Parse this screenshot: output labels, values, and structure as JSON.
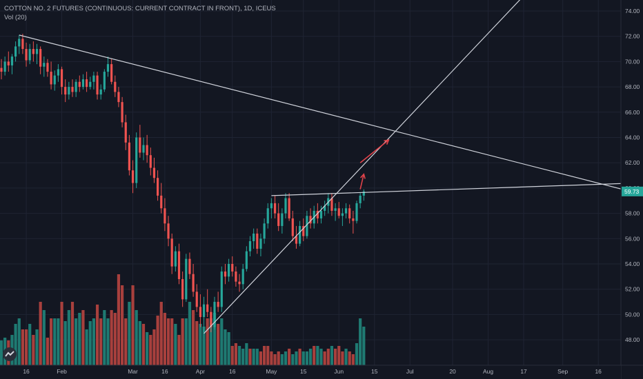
{
  "header": {
    "title": "COTTON NO. 2 FUTURES (CONTINUOUS: CURRENT CONTRACT IN FRONT), 1D, ICEUS",
    "volume_label": "Vol (20)"
  },
  "colors": {
    "background": "#131722",
    "grid": "#1f2433",
    "up": "#26a69a",
    "down": "#ef5350",
    "vol_up": "#1f7a72",
    "vol_down": "#a8403d",
    "trendline": "#d1d4dc",
    "arrow": "#e0434a",
    "axis_text": "#b2b5be",
    "price_badge": "#26a69a"
  },
  "chart_data": {
    "type": "candlestick",
    "price_axis": {
      "ylim": [
        47,
        75
      ],
      "tick_labels": [
        "74.00",
        "72.00",
        "70.00",
        "68.00",
        "66.00",
        "64.00",
        "62.00",
        "60.00",
        "58.00",
        "56.00",
        "54.00",
        "52.00",
        "50.00",
        "48.00"
      ],
      "tick_values": [
        74,
        72,
        70,
        68,
        66,
        64,
        62,
        60,
        58,
        56,
        54,
        52,
        50,
        48
      ],
      "last_price": "59.73",
      "last_price_value": 59.73
    },
    "time_axis": {
      "tick_labels": [
        "16",
        "Feb",
        "Mar",
        "16",
        "Apr",
        "16",
        "May",
        "15",
        "Jun",
        "15",
        "Jul",
        "20",
        "Aug",
        "17",
        "Sep",
        "16"
      ],
      "tick_bar_index": [
        7,
        17,
        37,
        46,
        56,
        65,
        76,
        85,
        95,
        105,
        115,
        127,
        137,
        147,
        158,
        168
      ]
    },
    "candles": [
      [
        69.5,
        70.2,
        68.6,
        69.2
      ],
      [
        69.2,
        70.4,
        68.9,
        70.0
      ],
      [
        70.0,
        70.8,
        69.2,
        69.7
      ],
      [
        69.7,
        70.6,
        69.0,
        70.4
      ],
      [
        70.4,
        71.6,
        70.0,
        71.2
      ],
      [
        71.2,
        72.1,
        70.6,
        71.8
      ],
      [
        71.8,
        72.2,
        70.6,
        71.0
      ],
      [
        71.0,
        71.5,
        69.6,
        70.1
      ],
      [
        70.1,
        71.4,
        69.8,
        71.0
      ],
      [
        71.0,
        71.6,
        70.0,
        70.6
      ],
      [
        70.6,
        71.4,
        69.8,
        71.0
      ],
      [
        71.0,
        71.2,
        69.0,
        69.6
      ],
      [
        69.6,
        70.4,
        68.8,
        69.9
      ],
      [
        69.9,
        70.2,
        68.8,
        69.2
      ],
      [
        69.2,
        70.0,
        67.8,
        68.2
      ],
      [
        68.2,
        69.3,
        67.7,
        68.9
      ],
      [
        68.9,
        69.8,
        68.4,
        69.4
      ],
      [
        69.4,
        69.6,
        67.4,
        68.0
      ],
      [
        68.0,
        68.6,
        66.8,
        67.4
      ],
      [
        67.4,
        68.4,
        67.0,
        68.0
      ],
      [
        68.0,
        68.6,
        67.2,
        67.6
      ],
      [
        67.6,
        68.6,
        67.2,
        68.4
      ],
      [
        68.4,
        68.9,
        67.6,
        68.0
      ],
      [
        68.0,
        69.0,
        67.8,
        68.6
      ],
      [
        68.6,
        69.2,
        67.6,
        68.0
      ],
      [
        68.0,
        68.8,
        67.8,
        68.4
      ],
      [
        68.4,
        69.2,
        67.8,
        68.9
      ],
      [
        68.9,
        69.2,
        67.0,
        67.4
      ],
      [
        67.4,
        68.2,
        67.0,
        67.8
      ],
      [
        67.8,
        69.4,
        67.6,
        69.2
      ],
      [
        69.2,
        70.4,
        68.8,
        69.8
      ],
      [
        69.8,
        70.2,
        68.2,
        68.4
      ],
      [
        68.4,
        68.9,
        67.2,
        67.6
      ],
      [
        67.6,
        68.0,
        66.4,
        66.8
      ],
      [
        66.8,
        67.2,
        64.8,
        65.2
      ],
      [
        65.2,
        65.8,
        63.0,
        63.6
      ],
      [
        63.6,
        64.2,
        61.0,
        61.4
      ],
      [
        61.4,
        62.2,
        59.6,
        60.4
      ],
      [
        60.4,
        64.4,
        60.0,
        64.0
      ],
      [
        64.0,
        65.0,
        62.4,
        62.8
      ],
      [
        62.8,
        64.0,
        62.2,
        63.4
      ],
      [
        63.4,
        64.2,
        62.0,
        62.6
      ],
      [
        62.6,
        63.2,
        61.0,
        61.6
      ],
      [
        61.6,
        62.4,
        60.4,
        60.8
      ],
      [
        60.8,
        61.4,
        59.0,
        59.4
      ],
      [
        59.4,
        60.4,
        58.0,
        58.4
      ],
      [
        58.4,
        59.2,
        56.6,
        57.2
      ],
      [
        57.2,
        57.8,
        55.4,
        56.0
      ],
      [
        56.0,
        56.4,
        53.2,
        53.8
      ],
      [
        53.8,
        55.4,
        53.4,
        55.0
      ],
      [
        55.0,
        55.6,
        52.4,
        52.8
      ],
      [
        52.8,
        53.4,
        50.6,
        51.2
      ],
      [
        51.2,
        54.8,
        51.0,
        54.4
      ],
      [
        54.4,
        54.9,
        52.8,
        53.2
      ],
      [
        53.2,
        54.0,
        51.4,
        51.8
      ],
      [
        51.8,
        52.4,
        50.2,
        50.6
      ],
      [
        50.6,
        51.6,
        49.0,
        49.8
      ],
      [
        49.8,
        51.4,
        48.6,
        50.8
      ],
      [
        50.8,
        52.0,
        49.8,
        50.2
      ],
      [
        50.2,
        50.6,
        48.6,
        49.0
      ],
      [
        49.0,
        51.4,
        48.8,
        51.0
      ],
      [
        51.0,
        51.8,
        50.2,
        50.6
      ],
      [
        50.6,
        53.8,
        50.2,
        53.4
      ],
      [
        53.4,
        54.0,
        52.4,
        53.0
      ],
      [
        53.0,
        54.4,
        52.6,
        54.0
      ],
      [
        54.0,
        54.6,
        53.0,
        53.4
      ],
      [
        53.4,
        53.8,
        52.2,
        52.6
      ],
      [
        52.6,
        53.2,
        51.8,
        52.4
      ],
      [
        52.4,
        54.0,
        52.0,
        53.6
      ],
      [
        53.6,
        55.4,
        53.4,
        55.0
      ],
      [
        55.0,
        56.2,
        54.6,
        55.8
      ],
      [
        55.8,
        56.8,
        55.2,
        56.4
      ],
      [
        56.4,
        56.8,
        54.8,
        55.2
      ],
      [
        55.2,
        56.4,
        54.6,
        56.0
      ],
      [
        56.0,
        57.6,
        55.6,
        57.2
      ],
      [
        57.2,
        58.8,
        56.8,
        58.4
      ],
      [
        58.4,
        59.2,
        57.6,
        58.8
      ],
      [
        58.8,
        59.4,
        57.6,
        58.0
      ],
      [
        58.0,
        58.8,
        56.6,
        57.0
      ],
      [
        57.0,
        58.4,
        56.4,
        58.0
      ],
      [
        58.0,
        59.6,
        57.6,
        59.2
      ],
      [
        59.2,
        59.6,
        57.4,
        57.6
      ],
      [
        57.6,
        58.2,
        55.8,
        56.2
      ],
      [
        56.2,
        57.0,
        55.2,
        55.6
      ],
      [
        55.6,
        57.4,
        55.4,
        57.0
      ],
      [
        57.0,
        57.6,
        55.8,
        56.2
      ],
      [
        56.2,
        58.2,
        56.0,
        57.8
      ],
      [
        57.8,
        58.4,
        56.8,
        57.2
      ],
      [
        57.2,
        58.6,
        56.8,
        58.2
      ],
      [
        58.2,
        58.8,
        57.2,
        57.6
      ],
      [
        57.6,
        58.6,
        57.2,
        58.2
      ],
      [
        58.2,
        59.0,
        57.8,
        58.6
      ],
      [
        58.6,
        59.6,
        58.0,
        59.2
      ],
      [
        59.2,
        59.6,
        57.8,
        58.2
      ],
      [
        58.2,
        58.8,
        57.4,
        58.4
      ],
      [
        58.4,
        58.9,
        57.6,
        57.8
      ],
      [
        57.8,
        58.4,
        57.0,
        58.0
      ],
      [
        58.0,
        58.8,
        57.6,
        58.4
      ],
      [
        58.4,
        58.7,
        57.2,
        57.6
      ],
      [
        57.6,
        58.2,
        56.4,
        57.4
      ],
      [
        57.4,
        59.0,
        57.2,
        58.8
      ],
      [
        58.8,
        59.6,
        58.4,
        59.4
      ],
      [
        59.4,
        59.9,
        59.0,
        59.73
      ]
    ],
    "volume": [
      [
        9,
        1
      ],
      [
        10,
        1
      ],
      [
        9,
        0
      ],
      [
        11,
        1
      ],
      [
        15,
        1
      ],
      [
        17,
        1
      ],
      [
        13,
        0
      ],
      [
        13,
        0
      ],
      [
        15,
        1
      ],
      [
        11,
        0
      ],
      [
        13,
        1
      ],
      [
        23,
        0
      ],
      [
        20,
        1
      ],
      [
        10,
        0
      ],
      [
        17,
        0
      ],
      [
        17,
        1
      ],
      [
        17,
        1
      ],
      [
        23,
        0
      ],
      [
        16,
        1
      ],
      [
        20,
        1
      ],
      [
        23,
        0
      ],
      [
        17,
        1
      ],
      [
        19,
        1
      ],
      [
        20,
        0
      ],
      [
        13,
        1
      ],
      [
        16,
        1
      ],
      [
        17,
        1
      ],
      [
        22,
        0
      ],
      [
        17,
        0
      ],
      [
        20,
        1
      ],
      [
        17,
        1
      ],
      [
        20,
        0
      ],
      [
        19,
        0
      ],
      [
        33,
        0
      ],
      [
        29,
        0
      ],
      [
        17,
        0
      ],
      [
        23,
        1
      ],
      [
        29,
        0
      ],
      [
        20,
        1
      ],
      [
        16,
        1
      ],
      [
        15,
        0
      ],
      [
        12,
        1
      ],
      [
        11,
        0
      ],
      [
        13,
        0
      ],
      [
        18,
        0
      ],
      [
        23,
        0
      ],
      [
        19,
        0
      ],
      [
        17,
        0
      ],
      [
        17,
        0
      ],
      [
        15,
        1
      ],
      [
        11,
        0
      ],
      [
        17,
        0
      ],
      [
        17,
        1
      ],
      [
        23,
        1
      ],
      [
        20,
        0
      ],
      [
        16,
        0
      ],
      [
        15,
        1
      ],
      [
        14,
        1
      ],
      [
        17,
        0
      ],
      [
        17,
        1
      ],
      [
        19,
        1
      ],
      [
        15,
        0
      ],
      [
        17,
        1
      ],
      [
        13,
        1
      ],
      [
        12,
        1
      ],
      [
        7,
        0
      ],
      [
        8,
        0
      ],
      [
        7,
        1
      ],
      [
        6,
        1
      ],
      [
        8,
        1
      ],
      [
        6,
        0
      ],
      [
        6,
        1
      ],
      [
        6,
        1
      ],
      [
        5,
        0
      ],
      [
        7,
        0
      ],
      [
        7,
        0
      ],
      [
        5,
        0
      ],
      [
        4,
        0
      ],
      [
        5,
        0
      ],
      [
        4,
        1
      ],
      [
        5,
        1
      ],
      [
        6,
        0
      ],
      [
        4,
        1
      ],
      [
        5,
        1
      ],
      [
        6,
        0
      ],
      [
        5,
        1
      ],
      [
        5,
        1
      ],
      [
        6,
        1
      ],
      [
        7,
        0
      ],
      [
        7,
        1
      ],
      [
        6,
        1
      ],
      [
        5,
        0
      ],
      [
        6,
        0
      ],
      [
        7,
        1
      ],
      [
        6,
        0
      ],
      [
        7,
        0
      ],
      [
        5,
        0
      ],
      [
        6,
        1
      ],
      [
        5,
        0
      ],
      [
        4,
        0
      ],
      [
        8,
        1
      ],
      [
        17,
        1
      ],
      [
        14,
        1
      ]
    ],
    "volume_scale_max": 33
  },
  "drawings": {
    "downtrend_line": {
      "from_bar": 5,
      "from_price": 72.1,
      "to_bar": 179,
      "to_price": 59.6
    },
    "uptrend_line": {
      "from_bar": 57,
      "from_price": 48.5,
      "to_bar": 148,
      "to_price": 75.5
    },
    "resistance_line": {
      "from_bar": 76,
      "from_price": 59.4,
      "to_bar": 179,
      "to_price": 60.4
    },
    "arrow_short": {
      "from_bar": 101,
      "from_price": 59.9,
      "to_bar": 102,
      "to_price": 61.1
    },
    "arrow_long": {
      "from_bar": 101,
      "from_price": 62.0,
      "to_bar": 109,
      "to_price": 63.8
    }
  }
}
